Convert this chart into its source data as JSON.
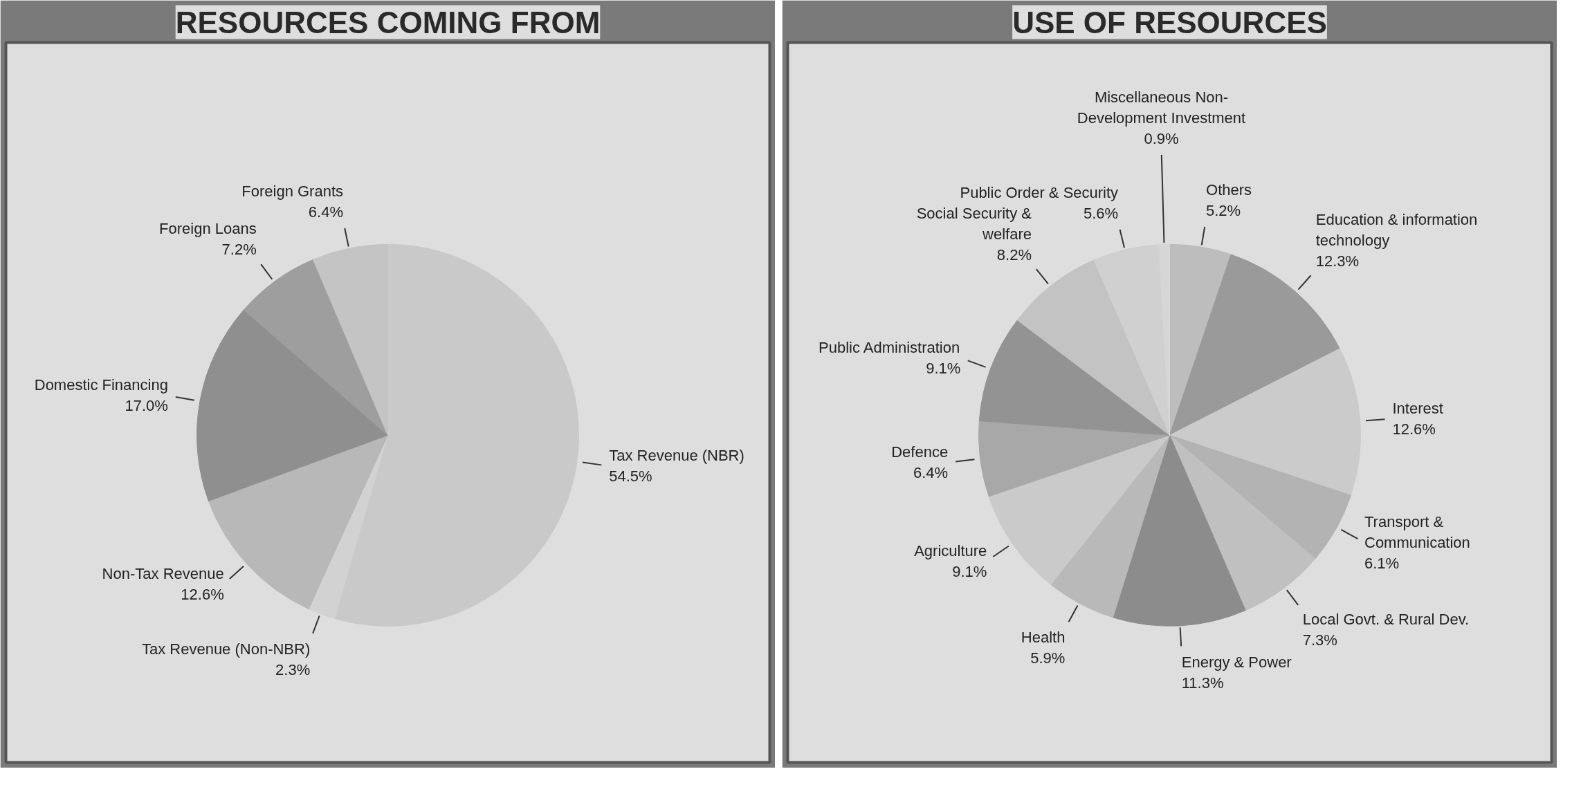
{
  "chart_data": [
    {
      "type": "pie",
      "title": "RESOURCES COMING FROM",
      "categories": [
        "Tax Revenue (NBR)",
        "Tax Revenue (Non-NBR)",
        "Non-Tax Revenue",
        "Domestic Financing",
        "Foreign Loans",
        "Foreign Grants"
      ],
      "values": [
        54.5,
        2.3,
        12.6,
        17.0,
        7.2,
        6.4
      ],
      "colors": [
        "#c9c9c9",
        "#d2d2d2",
        "#b8b8b8",
        "#8f8f8f",
        "#9e9e9e",
        "#c4c4c4"
      ],
      "value_labels": [
        "54.5%",
        "2.3%",
        "12.6%",
        "17.0%",
        "7.2%",
        "6.4%"
      ]
    },
    {
      "type": "pie",
      "title": "USE OF RESOURCES",
      "categories": [
        "Others",
        "Education & information technology",
        "Interest",
        "Transport & Communication",
        "Local Govt. & Rural Dev.",
        "Energy & Power",
        "Health",
        "Agriculture",
        "Defence",
        "Public Administration",
        "Social Security & welfare",
        "Public Order & Security",
        "Miscellaneous Non- Development Investment"
      ],
      "values": [
        5.2,
        12.3,
        12.6,
        6.1,
        7.3,
        11.3,
        5.9,
        9.1,
        6.4,
        9.1,
        8.2,
        5.6,
        0.9
      ],
      "colors": [
        "#bdbdbd",
        "#9a9a9a",
        "#cbcbcb",
        "#b3b3b3",
        "#c0c0c0",
        "#8c8c8c",
        "#b9b9b9",
        "#cacaca",
        "#a8a8a8",
        "#939393",
        "#c3c3c3",
        "#d0d0d0",
        "#d6d6d6"
      ],
      "value_labels": [
        "5.2%",
        "12.3%",
        "12.6%",
        "6.1%",
        "7.3%",
        "11.3%",
        "5.9%",
        "9.1%",
        "6.4%",
        "9.1%",
        "8.2%",
        "5.6%",
        "0.9%"
      ]
    }
  ]
}
